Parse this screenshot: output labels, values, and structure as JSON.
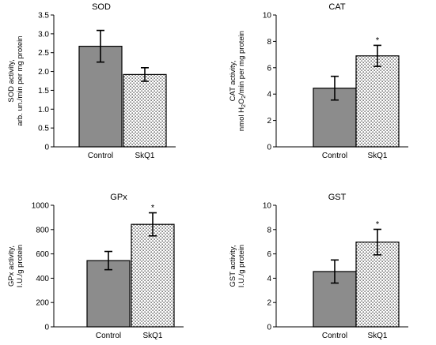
{
  "colors": {
    "control_fill": "#8c8c8c",
    "skq1_dot": "#333333",
    "axis": "#000000"
  },
  "chart_data": [
    {
      "type": "bar",
      "title": "SOD",
      "ylabel_lines": [
        "SOD activity,",
        "arb. un./min per mg protein"
      ],
      "categories": [
        "Control",
        "SkQ1"
      ],
      "values": [
        2.67,
        1.92
      ],
      "errors": [
        0.42,
        0.18
      ],
      "significance": [
        "",
        ""
      ],
      "ylim": [
        0,
        3.5
      ],
      "yticks": [
        "0",
        "0.5",
        "1.0",
        "1.5",
        "2.0",
        "2.5",
        "3.0",
        "3.5"
      ],
      "ytick_values": [
        0,
        0.5,
        1.0,
        1.5,
        2.0,
        2.5,
        3.0,
        3.5
      ]
    },
    {
      "type": "bar",
      "title": "CAT",
      "ylabel_lines": [
        "CAT activity,",
        "nmol H2O2/min per mg protein"
      ],
      "categories": [
        "Control",
        "SkQ1"
      ],
      "values": [
        4.45,
        6.9
      ],
      "errors": [
        0.9,
        0.8
      ],
      "significance": [
        "",
        "*"
      ],
      "ylim": [
        0,
        10
      ],
      "yticks": [
        "0",
        "2",
        "4",
        "6",
        "8",
        "10"
      ],
      "ytick_values": [
        0,
        2,
        4,
        6,
        8,
        10
      ]
    },
    {
      "type": "bar",
      "title": "GPx",
      "ylabel_lines": [
        "GPx activity,",
        "I.U./g protein"
      ],
      "categories": [
        "Control",
        "SkQ1"
      ],
      "values": [
        545,
        843
      ],
      "errors": [
        75,
        95
      ],
      "significance": [
        "",
        "*"
      ],
      "ylim": [
        0,
        1000
      ],
      "yticks": [
        "0",
        "200",
        "400",
        "600",
        "800",
        "1000"
      ],
      "ytick_values": [
        0,
        200,
        400,
        600,
        800,
        1000
      ]
    },
    {
      "type": "bar",
      "title": "GST",
      "ylabel_lines": [
        "GST activity,",
        "I.U./g protein"
      ],
      "categories": [
        "Control",
        "SkQ1"
      ],
      "values": [
        4.55,
        6.97
      ],
      "errors": [
        0.95,
        1.05
      ],
      "significance": [
        "",
        "*"
      ],
      "ylim": [
        0,
        10
      ],
      "yticks": [
        "0",
        "2",
        "4",
        "6",
        "8",
        "10"
      ],
      "ytick_values": [
        0,
        2,
        4,
        6,
        8,
        10
      ]
    }
  ]
}
